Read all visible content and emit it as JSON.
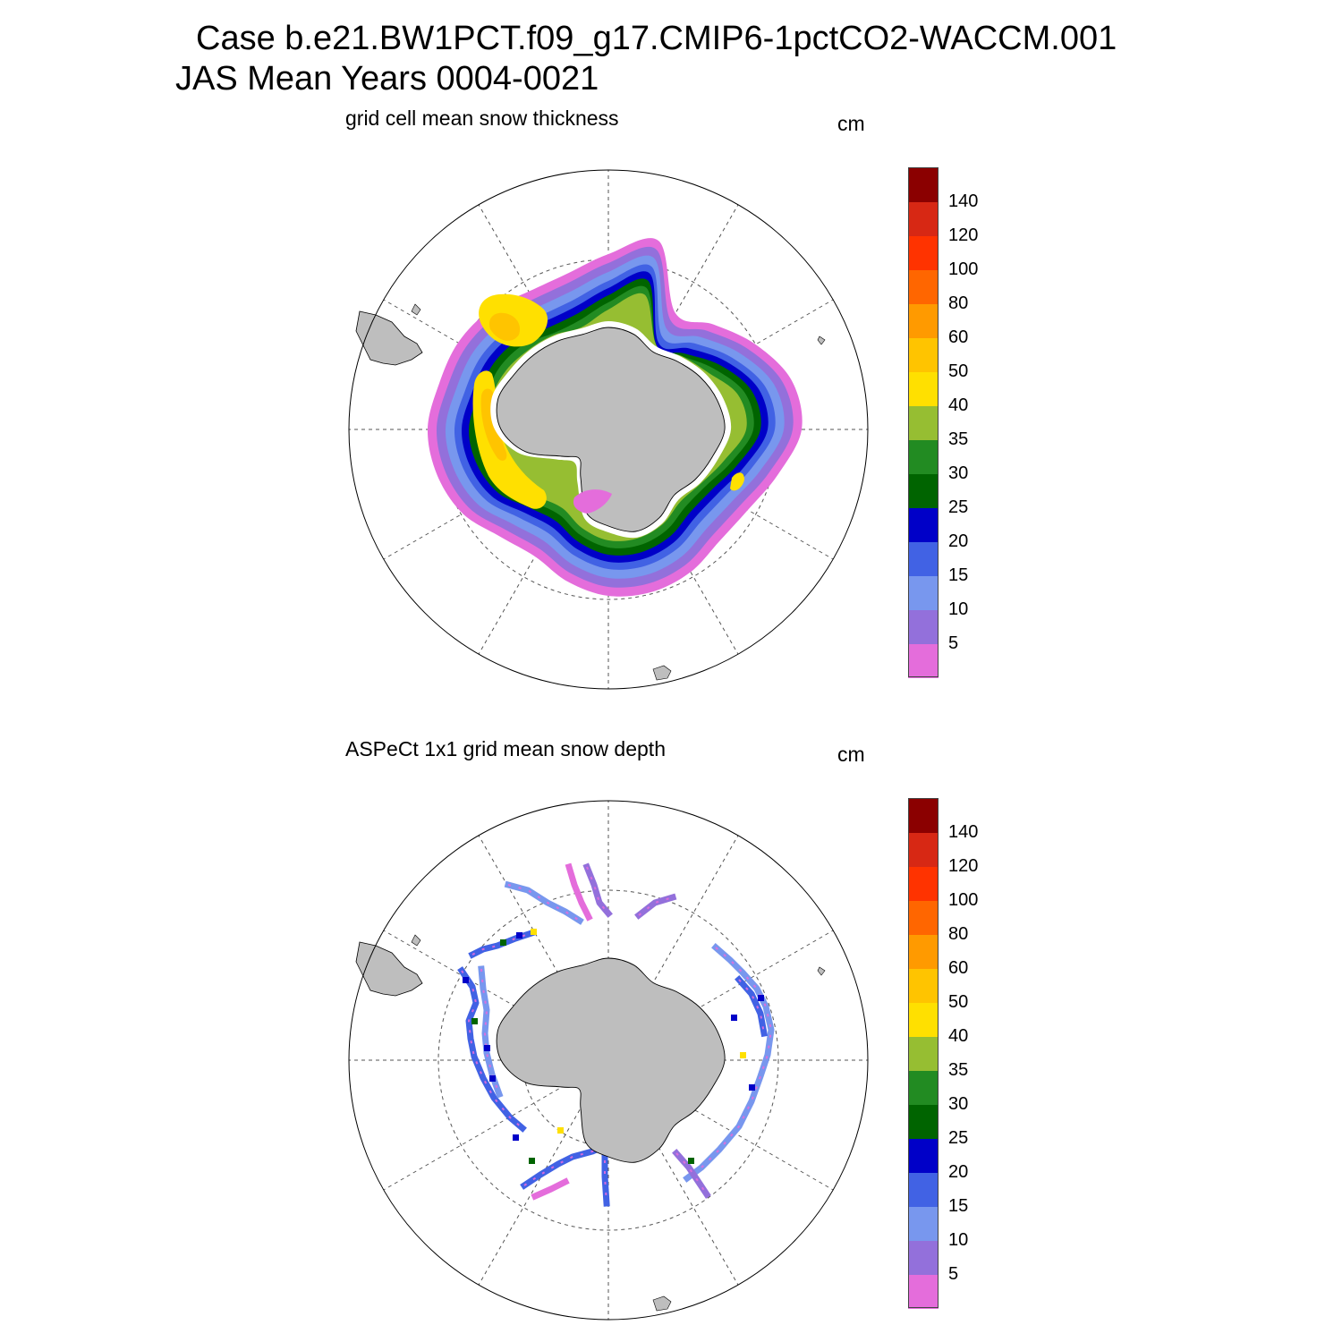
{
  "title": {
    "line1": "Case b.e21.BW1PCT.f09_g17.CMIP6-1pctCO2-WACCM.001",
    "line2": "JAS Mean   Years 0004-0021"
  },
  "panels": [
    {
      "title": "grid cell mean snow thickness",
      "units": "cm",
      "kind": "model"
    },
    {
      "title": "ASPeCt 1x1 grid mean snow depth",
      "units": "cm",
      "kind": "obs"
    }
  ],
  "colorbar": {
    "levels": [
      "5",
      "10",
      "15",
      "20",
      "25",
      "30",
      "35",
      "40",
      "50",
      "60",
      "80",
      "100",
      "120",
      "140"
    ],
    "colors": [
      "#e46ddb",
      "#9370db",
      "#7897ee",
      "#4162e4",
      "#0000c8",
      "#006400",
      "#228b22",
      "#96be32",
      "#ffe000",
      "#ffc400",
      "#ff9a00",
      "#ff6600",
      "#ff3300",
      "#d72814",
      "#8b0000"
    ]
  },
  "map": {
    "projection": "south-polar-stereographic",
    "land_color": "#bebebe",
    "grid": "dashed"
  }
}
